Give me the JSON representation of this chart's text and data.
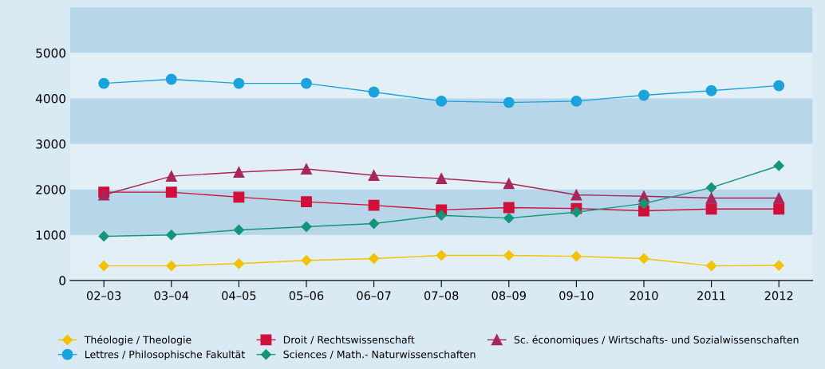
{
  "chart_data": {
    "type": "line",
    "categories": [
      "02–03",
      "03–04",
      "04–05",
      "05–06",
      "06–07",
      "07–08",
      "08–09",
      "09–10",
      "2010",
      "2011",
      "2012"
    ],
    "ylim": [
      0,
      6000
    ],
    "yticks": [
      0,
      1000,
      2000,
      3000,
      4000,
      5000
    ],
    "grid": false,
    "legend": "bottom",
    "bands": [
      {
        "axis": "y",
        "from": 1000,
        "to": 2000,
        "color": "#b7d6e9"
      },
      {
        "axis": "y",
        "from": 3000,
        "to": 4000,
        "color": "#b7d6e9"
      },
      {
        "axis": "y",
        "from": 5000,
        "to": 6000,
        "color": "#b7d6e9"
      }
    ],
    "series": [
      {
        "name": "Théologie / Theologie",
        "color": "#f2c200",
        "marker": "diamond",
        "values": [
          320,
          320,
          370,
          440,
          480,
          550,
          550,
          530,
          480,
          320,
          330
        ]
      },
      {
        "name": "Droit / Rechtswissenschaft",
        "color": "#d0103a",
        "marker": "square",
        "values": [
          1940,
          1940,
          1830,
          1730,
          1650,
          1550,
          1600,
          1580,
          1530,
          1570,
          1570
        ]
      },
      {
        "name": "Sc. économiques / Wirtschafts- und Sozialwissenschaften",
        "color": "#a8275a",
        "marker": "triangle",
        "values": [
          1880,
          2290,
          2380,
          2450,
          2310,
          2240,
          2130,
          1880,
          1850,
          1810,
          1810
        ]
      },
      {
        "name": "Lettres / Philosophische Fakultät",
        "color": "#1ba3dc",
        "marker": "circle",
        "values": [
          4330,
          4420,
          4330,
          4330,
          4140,
          3940,
          3910,
          3940,
          4070,
          4170,
          4280
        ]
      },
      {
        "name": "Sciences / Math.- Naturwissenschaften",
        "color": "#13957a",
        "marker": "diamond",
        "values": [
          970,
          1000,
          1110,
          1180,
          1250,
          1430,
          1370,
          1500,
          1690,
          2040,
          2520
        ]
      }
    ]
  }
}
